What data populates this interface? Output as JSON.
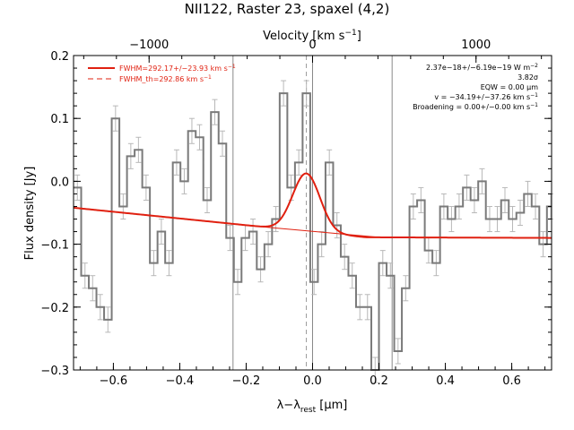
{
  "chart_data": {
    "type": "line",
    "title": "NII122, Raster 23, spaxel (4,2)",
    "xlabel_main": "λ−λ",
    "xlabel_sub": "rest",
    "xlabel_unit": " [μm]",
    "top_xlabel": "Velocity [km s",
    "top_xlabel_sup": "−1",
    "top_xlabel_end": "]",
    "ylabel": "Flux density [Jy]",
    "xlim": [
      -0.72,
      0.72
    ],
    "ylim": [
      -0.3,
      0.2
    ],
    "x_ticks": [
      -0.6,
      -0.4,
      -0.2,
      0.0,
      0.2,
      0.4,
      0.6
    ],
    "x_tick_labels": [
      "−0.6",
      "−0.4",
      "−0.2",
      "0.0",
      "0.2",
      "0.4",
      "0.6"
    ],
    "y_ticks": [
      -0.3,
      -0.2,
      -0.1,
      0.0,
      0.1,
      0.2
    ],
    "y_tick_labels": [
      "−0.3",
      "−0.2",
      "−0.1",
      "0.0",
      "0.1",
      "0.2"
    ],
    "top_ticks_um": [
      -0.4924,
      0.0,
      0.4924
    ],
    "top_tick_labels": [
      "−1000",
      "0",
      "1000"
    ],
    "vlines_solid": [
      -0.2396,
      0.0,
      0.2396
    ],
    "vline_dashed": -0.0187,
    "legend": {
      "fit_label": "FWHM=292.17+/−23.93 km s",
      "fit_sup": "−1",
      "th_label": "FWHM_th=292.86 km s",
      "th_sup": "−1"
    },
    "annotations": [
      {
        "text": "2.37e−18+/−6.19e−19 W m",
        "sup": "−2"
      },
      {
        "text": "3.82σ",
        "sup": ""
      },
      {
        "text": "EQW = 0.00 μm",
        "sup": ""
      },
      {
        "text": "v = −34.19+/−37.26 km s",
        "sup": "−1"
      },
      {
        "text": "Broadening = 0.00+/−0.00 km s",
        "sup": "−1"
      }
    ],
    "spectrum": {
      "x": [
        -0.72,
        -0.697,
        -0.674,
        -0.651,
        -0.628,
        -0.605,
        -0.582,
        -0.559,
        -0.536,
        -0.513,
        -0.49,
        -0.467,
        -0.444,
        -0.421,
        -0.398,
        -0.375,
        -0.352,
        -0.329,
        -0.306,
        -0.283,
        -0.26,
        -0.237,
        -0.214,
        -0.191,
        -0.168,
        -0.145,
        -0.122,
        -0.099,
        -0.076,
        -0.053,
        -0.03,
        -0.007,
        0.016,
        0.039,
        0.062,
        0.085,
        0.108,
        0.131,
        0.154,
        0.177,
        0.2,
        0.223,
        0.246,
        0.269,
        0.292,
        0.315,
        0.338,
        0.361,
        0.384,
        0.407,
        0.43,
        0.453,
        0.476,
        0.499,
        0.522,
        0.545,
        0.568,
        0.591,
        0.614,
        0.637,
        0.66,
        0.683,
        0.706
      ],
      "y": [
        -0.01,
        -0.15,
        -0.17,
        -0.2,
        -0.22,
        0.1,
        -0.04,
        0.04,
        0.05,
        -0.01,
        -0.13,
        -0.08,
        -0.13,
        0.03,
        0.0,
        0.08,
        0.07,
        -0.03,
        0.11,
        0.06,
        -0.09,
        -0.16,
        -0.09,
        -0.08,
        -0.14,
        -0.1,
        -0.06,
        0.14,
        -0.01,
        0.03,
        0.14,
        -0.16,
        -0.1,
        0.03,
        -0.07,
        -0.12,
        -0.15,
        -0.2,
        -0.2,
        -0.3,
        -0.13,
        -0.15,
        -0.27,
        -0.17,
        -0.04,
        -0.03,
        -0.11,
        -0.13,
        -0.04,
        -0.06,
        -0.04,
        -0.01,
        -0.03,
        0.0,
        -0.06,
        -0.06,
        -0.03,
        -0.06,
        -0.05,
        -0.02,
        -0.04,
        -0.1,
        -0.04
      ],
      "err": 0.02
    },
    "fit_curve": {
      "baseline_start": -0.042,
      "baseline_end": -0.089,
      "baseline_x_end": 0.16,
      "baseline_end_x": 0.72,
      "baseline_end_y": -0.09,
      "gauss_center": -0.0187,
      "gauss_amp": 0.092,
      "gauss_sigma": 0.041
    }
  }
}
